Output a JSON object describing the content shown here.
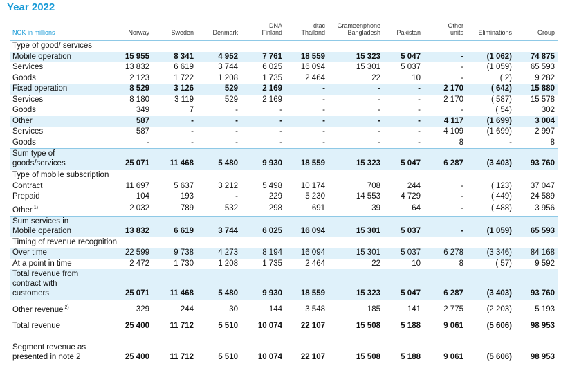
{
  "title": "Year 2022",
  "headers": [
    "NOK in millions",
    "Norway",
    "Sweden",
    "Denmark",
    "DNA\nFinland",
    "dtac\nThailand",
    "Grameenphone\nBangladesh",
    "Pakistan",
    "Other\nunits",
    "Eliminations",
    "Group"
  ],
  "rows": [
    {
      "label": "Type of good/ services",
      "vals": [
        "",
        "",
        "",
        "",
        "",
        "",
        "",
        "",
        "",
        ""
      ]
    },
    {
      "label": "Mobile operation",
      "vals": [
        "15 955",
        "8 341",
        "4 952",
        "7 761",
        "18 559",
        "15 323",
        "5 047",
        "-",
        "(1 062)",
        "74 875"
      ]
    },
    {
      "label": "Services",
      "vals": [
        "13 832",
        "6 619",
        "3 744",
        "6 025",
        "16 094",
        "15 301",
        "5 037",
        "-",
        "(1 059)",
        "65 593"
      ]
    },
    {
      "label": "Goods",
      "vals": [
        "2 123",
        "1 722",
        "1 208",
        "1 735",
        "2 464",
        "22",
        "10",
        "-",
        "( 2)",
        "9 282"
      ]
    },
    {
      "label": "Fixed operation",
      "vals": [
        "8 529",
        "3 126",
        "529",
        "2 169",
        "-",
        "-",
        "-",
        "2 170",
        "( 642)",
        "15 880"
      ]
    },
    {
      "label": "Services",
      "vals": [
        "8 180",
        "3 119",
        "529",
        "2 169",
        "-",
        "-",
        "-",
        "2 170",
        "( 587)",
        "15 578"
      ]
    },
    {
      "label": "Goods",
      "vals": [
        "349",
        "7",
        "-",
        "-",
        "-",
        "-",
        "-",
        "-",
        "( 54)",
        "302"
      ]
    },
    {
      "label": "Other",
      "vals": [
        "587",
        "-",
        "-",
        "-",
        "-",
        "-",
        "-",
        "4 117",
        "(1 699)",
        "3 004"
      ]
    },
    {
      "label": "Services",
      "vals": [
        "587",
        "-",
        "-",
        "-",
        "-",
        "-",
        "-",
        "4 109",
        "(1 699)",
        "2 997"
      ]
    },
    {
      "label": "Goods",
      "vals": [
        "-",
        "-",
        "-",
        "-",
        "-",
        "-",
        "-",
        "8",
        "-",
        "8"
      ]
    },
    {
      "label": "Sum type of goods/services",
      "vals": [
        "25 071",
        "11 468",
        "5 480",
        "9 930",
        "18 559",
        "15 323",
        "5 047",
        "6 287",
        "(3 403)",
        "93 760"
      ]
    },
    {
      "label": "Type of mobile subscription",
      "vals": [
        "",
        "",
        "",
        "",
        "",
        "",
        "",
        "",
        "",
        ""
      ]
    },
    {
      "label": "Contract",
      "vals": [
        "11 697",
        "5 637",
        "3 212",
        "5 498",
        "10 174",
        "708",
        "244",
        "-",
        "( 123)",
        "37 047"
      ]
    },
    {
      "label": "Prepaid",
      "vals": [
        "104",
        "193",
        "-",
        "229",
        "5 230",
        "14 553",
        "4 729",
        "-",
        "( 449)",
        "24 589"
      ]
    },
    {
      "label": "Other",
      "vals": [
        "2 032",
        "789",
        "532",
        "298",
        "691",
        "39",
        "64",
        "-",
        "( 488)",
        "3 956"
      ]
    },
    {
      "label": "Sum services in Mobile operation",
      "vals": [
        "13 832",
        "6 619",
        "3 744",
        "6 025",
        "16 094",
        "15 301",
        "5 037",
        "-",
        "(1 059)",
        "65 593"
      ]
    },
    {
      "label": "Timing of revenue recognition",
      "vals": [
        "",
        "",
        "",
        "",
        "",
        "",
        "",
        "",
        "",
        ""
      ]
    },
    {
      "label": "Over time",
      "vals": [
        "22 599",
        "9 738",
        "4 273",
        "8 194",
        "16 094",
        "15 301",
        "5 037",
        "6 278",
        "(3 346)",
        "84 168"
      ]
    },
    {
      "label": "At a point in time",
      "vals": [
        "2 472",
        "1 730",
        "1 208",
        "1 735",
        "2 464",
        "22",
        "10",
        "8",
        "( 57)",
        "9 592"
      ]
    },
    {
      "label": "Total revenue from contract with customers",
      "vals": [
        "25 071",
        "11 468",
        "5 480",
        "9 930",
        "18 559",
        "15 323",
        "5 047",
        "6 287",
        "(3 403)",
        "93 760"
      ]
    },
    {
      "label": "Other revenue",
      "vals": [
        "329",
        "244",
        "30",
        "144",
        "3 548",
        "185",
        "141",
        "2 775",
        "(2 203)",
        "5 193"
      ]
    },
    {
      "label": "Total revenue",
      "vals": [
        "25 400",
        "11 712",
        "5 510",
        "10 074",
        "22 107",
        "15 508",
        "5 188",
        "9 061",
        "(5 606)",
        "98 953"
      ]
    },
    {
      "label": "Segment revenue as presented in note 2",
      "vals": [
        "25 400",
        "11 712",
        "5 510",
        "10 074",
        "22 107",
        "15 508",
        "5 188",
        "9 061",
        "(5 606)",
        "98 953"
      ]
    }
  ],
  "footnote_marks": {
    "other_sub": "1)",
    "other_rev": "2)"
  }
}
